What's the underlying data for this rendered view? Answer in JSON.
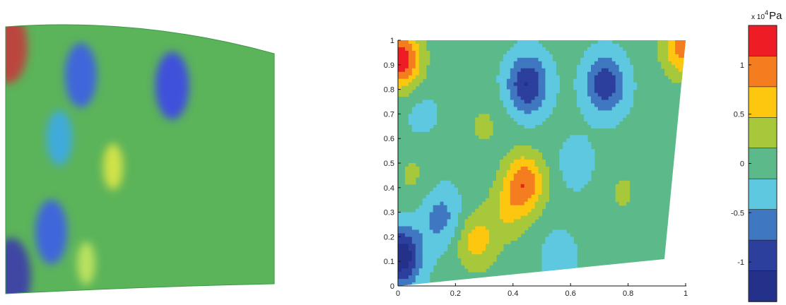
{
  "chart_data": [
    {
      "type": "heatmap",
      "view": "3d-surface",
      "title": "",
      "colormap": "jet",
      "value_range": [
        -1.4,
        1.4
      ],
      "hotspots": [
        {
          "x": 0.01,
          "y": 0.93,
          "value": 1.2
        },
        {
          "x": 0.02,
          "y": 0.05,
          "value": -1.3
        },
        {
          "x": 0.28,
          "y": 0.82,
          "value": -0.9
        },
        {
          "x": 0.62,
          "y": 0.78,
          "value": -1.0
        },
        {
          "x": 0.2,
          "y": 0.58,
          "value": -0.6
        },
        {
          "x": 0.17,
          "y": 0.22,
          "value": -0.9
        },
        {
          "x": 0.4,
          "y": 0.47,
          "value": 0.3
        },
        {
          "x": 0.3,
          "y": 0.1,
          "value": 0.2
        }
      ]
    },
    {
      "type": "heatmap",
      "view": "2d-contour",
      "title": "",
      "xlabel": "",
      "ylabel": "",
      "xlim": [
        0,
        1
      ],
      "ylim": [
        0,
        1
      ],
      "x_ticks": [
        "0",
        "0.2",
        "0.4",
        "0.6",
        "0.8",
        "1"
      ],
      "y_ticks": [
        "0",
        "0.1",
        "0.2",
        "0.3",
        "0.4",
        "0.5",
        "0.6",
        "0.7",
        "0.8",
        "0.9",
        "1"
      ],
      "grid": false,
      "levels": 8,
      "value_range": [
        -1.4,
        1.4
      ],
      "hotspots": [
        {
          "x": 0.01,
          "y": 0.92,
          "value": 1.3
        },
        {
          "x": 0.99,
          "y": 0.97,
          "value": 0.9
        },
        {
          "x": 0.01,
          "y": 0.12,
          "value": -1.35
        },
        {
          "x": 0.45,
          "y": 0.82,
          "value": -1.1
        },
        {
          "x": 0.72,
          "y": 0.82,
          "value": -1.0
        },
        {
          "x": 0.44,
          "y": 0.42,
          "value": 1.0
        },
        {
          "x": 0.27,
          "y": 0.18,
          "value": 0.6
        },
        {
          "x": 0.38,
          "y": 0.3,
          "value": 0.4
        },
        {
          "x": 0.15,
          "y": 0.28,
          "value": -0.6
        },
        {
          "x": 0.62,
          "y": 0.5,
          "value": -0.3
        },
        {
          "x": 0.3,
          "y": 0.65,
          "value": 0.2
        },
        {
          "x": 0.08,
          "y": 0.7,
          "value": -0.25
        },
        {
          "x": 0.78,
          "y": 0.38,
          "value": 0.2
        },
        {
          "x": 0.56,
          "y": 0.12,
          "value": -0.3
        },
        {
          "x": 0.05,
          "y": 0.45,
          "value": 0.2
        }
      ]
    }
  ],
  "colorbar": {
    "exponent_text": "x 10",
    "exponent_power": "4",
    "unit": "Pa",
    "ticks": [
      "1",
      "0.5",
      "0",
      "-0.5",
      "-1"
    ],
    "tick_values": [
      1,
      0.5,
      0,
      -0.5,
      -1
    ],
    "range": [
      -1.4,
      1.4
    ],
    "bands": [
      "#ee1c24",
      "#f47d20",
      "#fdc60f",
      "#a6c83a",
      "#5cba8a",
      "#5ec8e0",
      "#3f77c0",
      "#2c3f9c",
      "#24318a"
    ]
  }
}
